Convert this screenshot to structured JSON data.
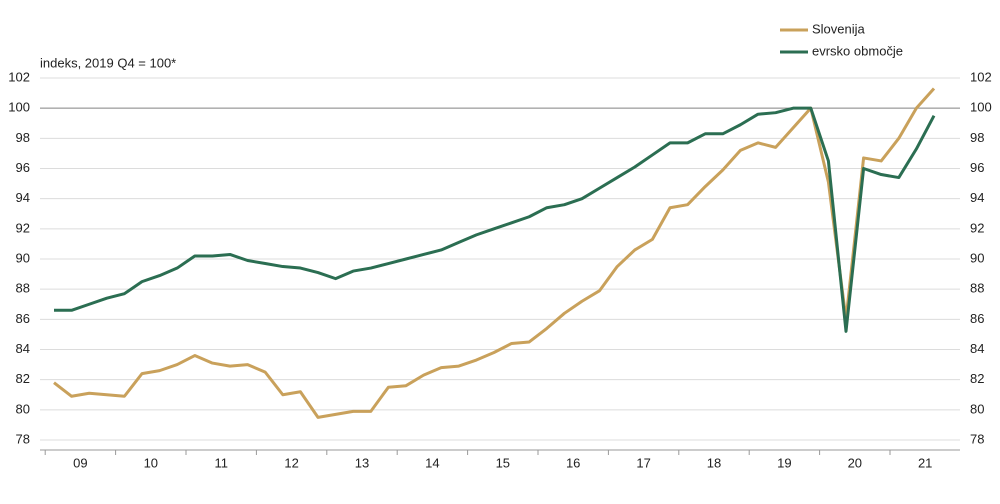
{
  "chart_data": {
    "type": "line",
    "axis_label": "indeks, 2019 Q4 = 100*",
    "categories": [
      null,
      null,
      null,
      null,
      null,
      null,
      null,
      null,
      null,
      null,
      null,
      null,
      null,
      null,
      null,
      null,
      null,
      null,
      null,
      null,
      null,
      null,
      null,
      null,
      null,
      null,
      null,
      null,
      null,
      null,
      null,
      null,
      null,
      null,
      null,
      null,
      null,
      null,
      null,
      null,
      null,
      null,
      null,
      null,
      null,
      null,
      null,
      null,
      null,
      null,
      null
    ],
    "year_labels": [
      "09",
      "10",
      "11",
      "12",
      "13",
      "14",
      "15",
      "16",
      "17",
      "18",
      "19",
      "20",
      "21"
    ],
    "series": [
      {
        "name": "Slovenija",
        "color": "#c9a15b",
        "values": [
          81.8,
          80.9,
          81.1,
          81.0,
          80.9,
          82.4,
          82.6,
          83.0,
          83.6,
          83.1,
          82.9,
          83.0,
          82.5,
          81.0,
          81.2,
          79.5,
          79.7,
          79.9,
          79.9,
          81.5,
          81.6,
          82.3,
          82.8,
          82.9,
          83.3,
          83.8,
          84.4,
          84.5,
          85.4,
          86.4,
          87.2,
          87.9,
          89.5,
          90.6,
          91.3,
          93.4,
          93.6,
          94.8,
          95.9,
          97.2,
          97.7,
          97.4,
          98.7,
          100.0,
          95.1,
          86.0,
          96.7,
          96.5,
          98.0,
          100.0,
          101.3
        ]
      },
      {
        "name": "evrsko območje",
        "color": "#2b6e52",
        "values": [
          86.6,
          86.6,
          87.0,
          87.4,
          87.7,
          88.5,
          88.9,
          89.4,
          90.2,
          90.2,
          90.3,
          89.9,
          89.7,
          89.5,
          89.4,
          89.1,
          88.7,
          89.2,
          89.4,
          89.7,
          90.0,
          90.3,
          90.6,
          91.1,
          91.6,
          92.0,
          92.4,
          92.8,
          93.4,
          93.6,
          94.0,
          94.7,
          95.4,
          96.1,
          96.9,
          97.7,
          97.7,
          98.3,
          98.3,
          98.9,
          99.6,
          99.7,
          100.0,
          100.0,
          96.5,
          85.2,
          96.0,
          95.6,
          95.4,
          97.3,
          99.5
        ]
      }
    ],
    "ylim": [
      78,
      102
    ],
    "yticks": [
      78,
      80,
      82,
      84,
      86,
      88,
      90,
      92,
      94,
      96,
      98,
      100,
      102
    ],
    "reference_line": 100,
    "grid": true,
    "legend": "top-right"
  }
}
